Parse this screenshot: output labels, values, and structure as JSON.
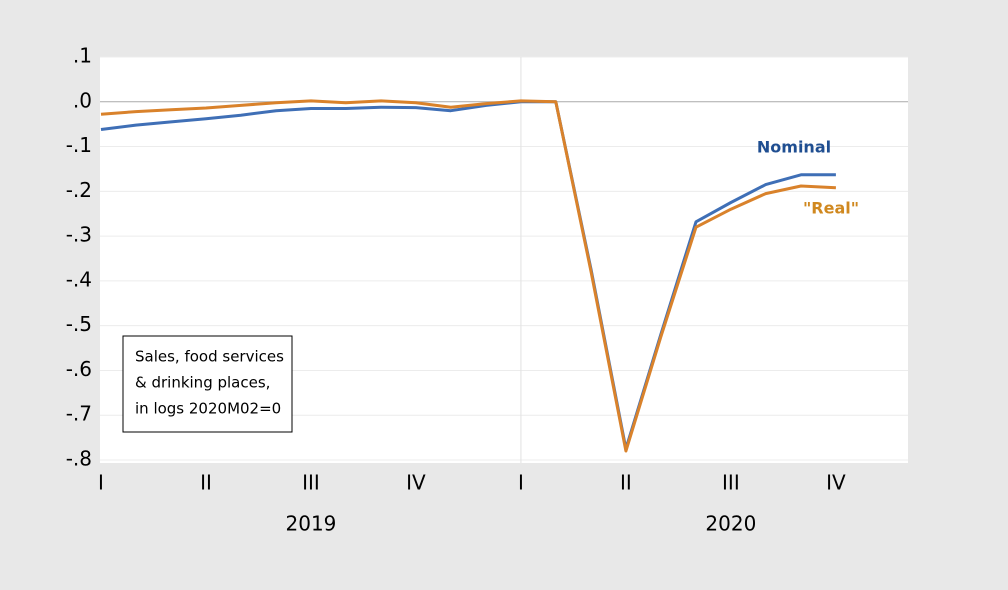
{
  "chart_data": {
    "type": "line",
    "x": [
      2019.0,
      2019.083,
      2019.167,
      2019.25,
      2019.333,
      2019.417,
      2019.5,
      2019.583,
      2019.667,
      2019.75,
      2019.833,
      2019.917,
      2020.0,
      2020.083,
      2020.167,
      2020.25,
      2020.333,
      2020.417,
      2020.5,
      2020.583,
      2020.667,
      2020.75
    ],
    "series": [
      {
        "name": "Nominal",
        "color": "#3f6fb6",
        "label_color": "#1f4e91",
        "values": [
          -0.062,
          -0.052,
          -0.045,
          -0.038,
          -0.03,
          -0.02,
          -0.015,
          -0.015,
          -0.012,
          -0.013,
          -0.02,
          -0.008,
          0.0,
          0.0,
          -0.375,
          -0.775,
          -0.52,
          -0.268,
          -0.225,
          -0.185,
          -0.163,
          -0.163
        ]
      },
      {
        "name": "\"Real\"",
        "color": "#d9822b",
        "label_color": "#d0881f",
        "values": [
          -0.028,
          -0.022,
          -0.018,
          -0.014,
          -0.008,
          -0.002,
          0.002,
          -0.002,
          0.002,
          -0.002,
          -0.012,
          -0.004,
          0.002,
          0.0,
          -0.38,
          -0.78,
          -0.525,
          -0.28,
          -0.24,
          -0.205,
          -0.188,
          -0.192
        ]
      }
    ],
    "xlim": [
      2019.0,
      2020.917
    ],
    "xticks": [
      {
        "value": 2019.0,
        "label": "I"
      },
      {
        "value": 2019.25,
        "label": "II"
      },
      {
        "value": 2019.5,
        "label": "III"
      },
      {
        "value": 2019.75,
        "label": "IV"
      },
      {
        "value": 2020.0,
        "label": "I"
      },
      {
        "value": 2020.25,
        "label": "II"
      },
      {
        "value": 2020.5,
        "label": "III"
      },
      {
        "value": 2020.75,
        "label": "IV"
      }
    ],
    "year_labels": [
      {
        "value": 2019.5,
        "label": "2019"
      },
      {
        "value": 2020.5,
        "label": "2020"
      }
    ],
    "ylim": [
      -0.8,
      0.1
    ],
    "yticks": [
      {
        "value": 0.1,
        "label": ".1"
      },
      {
        "value": 0,
        "label": ".0"
      },
      {
        "value": -0.1,
        "label": "-.1"
      },
      {
        "value": -0.2,
        "label": "-.2"
      },
      {
        "value": -0.3,
        "label": "-.3"
      },
      {
        "value": -0.4,
        "label": "-.4"
      },
      {
        "value": -0.5,
        "label": "-.5"
      },
      {
        "value": -0.6,
        "label": "-.6"
      },
      {
        "value": -0.7,
        "label": "-.7"
      },
      {
        "value": -0.8,
        "label": "-.8"
      }
    ],
    "grid": true,
    "vlines": [
      2020.0
    ],
    "annotation": [
      "Sales, food services",
      "& drinking places,",
      "in logs 2020M02=0"
    ]
  }
}
